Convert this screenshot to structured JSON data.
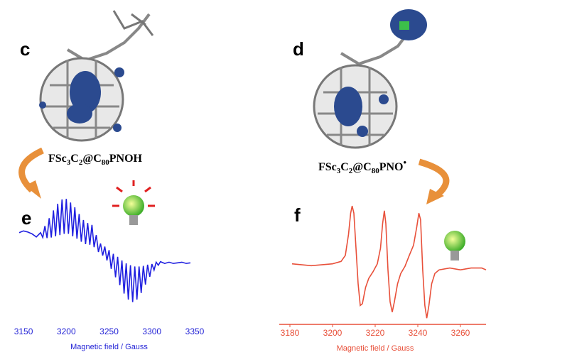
{
  "labels": [
    "c",
    "d",
    "e",
    "f"
  ],
  "molecules": [
    {
      "formula": [
        "FSc",
        "3",
        "C",
        "2",
        "@C",
        "80",
        "PNOH"
      ]
    },
    {
      "formula": [
        "FSc",
        "3",
        "C",
        "2",
        "@C",
        "80",
        "PNO",
        "•"
      ]
    }
  ],
  "chart_data": [
    {
      "type": "line",
      "xlabel": "Magnetic field / Gauss",
      "axis_color": "#2323d6",
      "axis_line": false,
      "xlim": [
        3140,
        3350
      ],
      "xticks": [
        3150,
        3200,
        3250,
        3300,
        3350
      ],
      "ylim": [
        -100,
        100
      ],
      "x": [
        3145,
        3150,
        3155,
        3160,
        3165,
        3170,
        3172.5,
        3175,
        3177.5,
        3180,
        3182.5,
        3185,
        3187.5,
        3190,
        3192.5,
        3195,
        3197.5,
        3200,
        3202.5,
        3205,
        3207.5,
        3210,
        3212.5,
        3215,
        3217.5,
        3220,
        3222.5,
        3225,
        3227.5,
        3230,
        3232.5,
        3235,
        3237.5,
        3240,
        3242.5,
        3245,
        3247.5,
        3250,
        3252.5,
        3255,
        3257.5,
        3260,
        3262.5,
        3265,
        3267.5,
        3270,
        3272.5,
        3275,
        3277.5,
        3280,
        3282.5,
        3285,
        3287.5,
        3290,
        3292.5,
        3295,
        3297.5,
        3300,
        3302.5,
        3305,
        3307.5,
        3310,
        3315,
        3320,
        3325,
        3330,
        3335,
        3340,
        3345
      ],
      "series": [
        {
          "color": "#1f1fe0",
          "values": [
            32,
            35,
            33,
            30,
            25,
            32,
            24,
            43,
            23,
            56,
            24,
            69,
            26,
            80,
            28,
            87,
            30,
            88,
            30,
            82,
            26,
            74,
            22,
            63,
            17,
            53,
            13,
            48,
            12,
            45,
            8,
            28,
            0,
            14,
            -6,
            9,
            -14,
            3,
            -28,
            -3,
            -42,
            -8,
            -55,
            -14,
            -69,
            -19,
            -79,
            -22,
            -83,
            -24,
            -79,
            -24,
            -68,
            -23,
            -54,
            -21,
            -41,
            -20,
            -30,
            -17,
            -22,
            -16,
            -19,
            -17,
            -19,
            -18,
            -17,
            -19,
            -18
          ]
        }
      ]
    },
    {
      "type": "line",
      "xlabel": "Magnetic field / Gauss",
      "axis_color": "#e8503a",
      "axis_line": true,
      "xlim": [
        3175,
        3272
      ],
      "xticks": [
        3180,
        3200,
        3220,
        3240,
        3260
      ],
      "ylim": [
        -100,
        100
      ],
      "x": [
        3181,
        3190,
        3200,
        3204,
        3206,
        3207.5,
        3208.5,
        3209.2,
        3210,
        3211,
        3212,
        3213,
        3214,
        3215.5,
        3217,
        3219,
        3221,
        3222.5,
        3223.5,
        3224.3,
        3225,
        3226,
        3227,
        3228,
        3229,
        3230.5,
        3232,
        3234,
        3236,
        3238,
        3239.5,
        3240.5,
        3241.3,
        3242.3,
        3243.3,
        3244.2,
        3245.2,
        3246.5,
        3248,
        3250,
        3255,
        3260,
        3265,
        3270,
        3272
      ],
      "series": [
        {
          "color": "#e8503a",
          "values": [
            -2,
            -5,
            -2,
            2,
            12,
            47,
            82,
            94,
            82,
            24,
            -35,
            -71,
            -68,
            -41,
            -26,
            -15,
            -2,
            24,
            65,
            86,
            65,
            -12,
            -65,
            -82,
            -65,
            -35,
            -18,
            -6,
            12,
            29,
            59,
            82,
            71,
            -12,
            -71,
            -92,
            -71,
            -35,
            -18,
            -12,
            -9,
            -12,
            -9,
            -9,
            -12
          ]
        }
      ]
    }
  ]
}
